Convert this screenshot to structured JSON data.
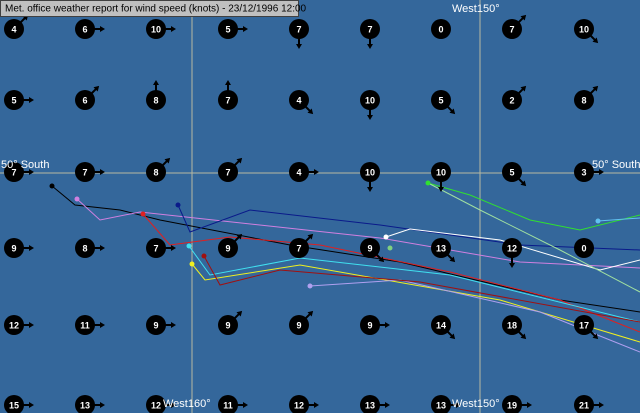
{
  "title": "Met. office weather report for wind speed (knots) - 23/12/1996   12:00",
  "labels": {
    "top_meridian": "West150°",
    "left_parallel": "50° South",
    "right_parallel": "50° South",
    "bottom_meridian_160": "West160°",
    "bottom_meridian_150": "West150°"
  },
  "stations": [
    [
      {
        "speed": 4,
        "dir": "NE"
      },
      {
        "speed": 6,
        "dir": "E"
      },
      {
        "speed": 10,
        "dir": "E"
      },
      {
        "speed": 5,
        "dir": "E"
      },
      {
        "speed": 7,
        "dir": "S"
      },
      {
        "speed": 7,
        "dir": "S"
      },
      {
        "speed": 0,
        "dir": null
      },
      {
        "speed": 7,
        "dir": "NE"
      },
      {
        "speed": 10,
        "dir": "SE"
      }
    ],
    [
      {
        "speed": 5,
        "dir": "E"
      },
      {
        "speed": 6,
        "dir": "NE"
      },
      {
        "speed": 8,
        "dir": "N"
      },
      {
        "speed": 7,
        "dir": "N"
      },
      {
        "speed": 4,
        "dir": "SE"
      },
      {
        "speed": 10,
        "dir": "S"
      },
      {
        "speed": 5,
        "dir": "SE"
      },
      {
        "speed": 2,
        "dir": "NE"
      },
      {
        "speed": 8,
        "dir": "NE"
      }
    ],
    [
      {
        "speed": 7,
        "dir": "E"
      },
      {
        "speed": 7,
        "dir": "E"
      },
      {
        "speed": 8,
        "dir": "NE"
      },
      {
        "speed": 7,
        "dir": "NE"
      },
      {
        "speed": 4,
        "dir": "E"
      },
      {
        "speed": 10,
        "dir": "S"
      },
      {
        "speed": 10,
        "dir": "S"
      },
      {
        "speed": 5,
        "dir": "SE"
      },
      {
        "speed": 3,
        "dir": "E"
      }
    ],
    [
      {
        "speed": 9,
        "dir": "E"
      },
      {
        "speed": 8,
        "dir": "E"
      },
      {
        "speed": 7,
        "dir": "E"
      },
      {
        "speed": 9,
        "dir": "NE"
      },
      {
        "speed": 7,
        "dir": "NE"
      },
      {
        "speed": 9,
        "dir": "SE"
      },
      {
        "speed": 13,
        "dir": "SE"
      },
      {
        "speed": 12,
        "dir": "S"
      },
      {
        "speed": 0,
        "dir": null
      }
    ],
    [
      {
        "speed": 12,
        "dir": "E"
      },
      {
        "speed": 11,
        "dir": "E"
      },
      {
        "speed": 9,
        "dir": "E"
      },
      {
        "speed": 9,
        "dir": "NE"
      },
      {
        "speed": 9,
        "dir": "NE"
      },
      {
        "speed": 9,
        "dir": "E"
      },
      {
        "speed": 14,
        "dir": "SE"
      },
      {
        "speed": 18,
        "dir": "SE"
      },
      {
        "speed": 17,
        "dir": "SE"
      }
    ],
    [
      {
        "speed": 15,
        "dir": "E"
      },
      {
        "speed": 13,
        "dir": "E"
      },
      {
        "speed": 12,
        "dir": "E"
      },
      {
        "speed": 11,
        "dir": "E"
      },
      {
        "speed": 12,
        "dir": "E"
      },
      {
        "speed": 13,
        "dir": "E"
      },
      {
        "speed": 13,
        "dir": "E"
      },
      {
        "speed": 19,
        "dir": "E"
      },
      {
        "speed": 21,
        "dir": "E"
      }
    ]
  ]
}
